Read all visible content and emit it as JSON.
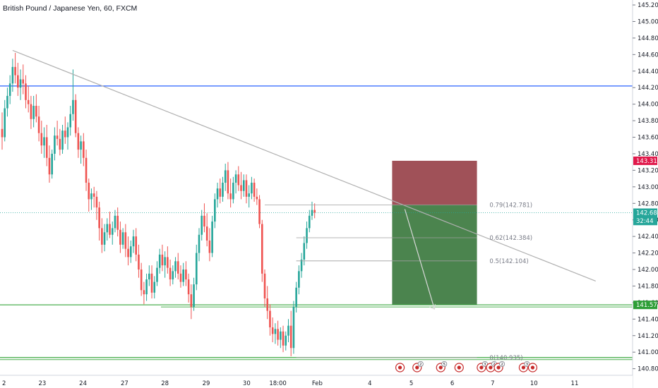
{
  "header": {
    "title": "British Pound / Japanese Yen, 60, FXCM"
  },
  "chart_data": {
    "type": "candlestick",
    "symbol": "British Pound / Japanese Yen",
    "interval": "60",
    "exchange": "FXCM",
    "ylim": [
      140.72,
      145.26
    ],
    "y_ticks": [
      140.8,
      141.0,
      141.2,
      141.4,
      141.6,
      141.8,
      142.0,
      142.2,
      142.4,
      142.6,
      142.8,
      143.0,
      143.2,
      143.4,
      143.6,
      143.8,
      144.0,
      144.2,
      144.4,
      144.6,
      144.8,
      145.0,
      145.2
    ],
    "y_tick_labels": [
      "140.800",
      "141.000",
      "141.200",
      "141.400",
      "141.600",
      "141.800",
      "142.000",
      "142.200",
      "142.400",
      "142.600",
      "142.800",
      "143.000",
      "143.200",
      "143.400",
      "143.600",
      "143.800",
      "144.000",
      "144.200",
      "144.400",
      "144.600",
      "144.800",
      "145.000",
      "145.200"
    ],
    "x_ticks": [
      {
        "label": "2",
        "bar": 0
      },
      {
        "label": "23",
        "bar": 15.3
      },
      {
        "label": "24",
        "bar": 30.8
      },
      {
        "label": "27",
        "bar": 46.6
      },
      {
        "label": "28",
        "bar": 62.0
      },
      {
        "label": "29",
        "bar": 77.7
      },
      {
        "label": "30",
        "bar": 93.1
      },
      {
        "label": "18:00",
        "bar": 105.0
      },
      {
        "label": "Feb",
        "bar": 120.0
      },
      {
        "label": "4",
        "bar": 140.0
      },
      {
        "label": "5",
        "bar": 155.8
      },
      {
        "label": "6",
        "bar": 171.4
      },
      {
        "label": "7",
        "bar": 186.8
      },
      {
        "label": "10",
        "bar": 202.5
      },
      {
        "label": "11",
        "bar": 218.0
      }
    ],
    "candles_ohlc": [
      [
        143.7,
        143.9,
        143.45,
        143.6
      ],
      [
        143.6,
        144.05,
        143.55,
        143.95
      ],
      [
        143.95,
        144.2,
        143.85,
        144.1
      ],
      [
        144.1,
        144.35,
        144.0,
        144.25
      ],
      [
        144.25,
        144.55,
        144.15,
        144.45
      ],
      [
        144.45,
        144.62,
        144.25,
        144.35
      ],
      [
        144.35,
        144.5,
        144.1,
        144.2
      ],
      [
        144.2,
        144.42,
        144.05,
        144.3
      ],
      [
        144.3,
        144.48,
        144.12,
        144.25
      ],
      [
        144.25,
        144.35,
        143.95,
        144.05
      ],
      [
        144.05,
        144.22,
        143.9,
        144.0
      ],
      [
        144.0,
        144.1,
        143.7,
        143.82
      ],
      [
        143.82,
        144.1,
        143.72,
        143.98
      ],
      [
        143.98,
        144.12,
        143.78,
        143.85
      ],
      [
        143.85,
        143.98,
        143.55,
        143.65
      ],
      [
        143.65,
        143.8,
        143.4,
        143.5
      ],
      [
        143.5,
        143.72,
        143.35,
        143.6
      ],
      [
        143.6,
        143.75,
        143.25,
        143.35
      ],
      [
        143.35,
        143.5,
        143.05,
        143.15
      ],
      [
        143.15,
        143.45,
        143.1,
        143.4
      ],
      [
        143.4,
        143.72,
        143.32,
        143.62
      ],
      [
        143.62,
        143.8,
        143.5,
        143.58
      ],
      [
        143.58,
        143.7,
        143.38,
        143.45
      ],
      [
        143.45,
        143.75,
        143.4,
        143.68
      ],
      [
        143.68,
        143.85,
        143.52,
        143.6
      ],
      [
        143.6,
        143.78,
        143.45,
        143.72
      ],
      [
        143.72,
        143.98,
        143.62,
        143.88
      ],
      [
        143.88,
        144.42,
        143.8,
        144.05
      ],
      [
        144.05,
        144.12,
        143.6,
        143.65
      ],
      [
        143.65,
        143.72,
        143.35,
        143.45
      ],
      [
        143.45,
        143.62,
        143.28,
        143.55
      ],
      [
        143.55,
        143.65,
        143.25,
        143.35
      ],
      [
        143.35,
        143.45,
        142.95,
        143.05
      ],
      [
        143.05,
        143.1,
        142.7,
        142.85
      ],
      [
        142.85,
        142.98,
        142.72,
        142.92
      ],
      [
        142.92,
        143.0,
        142.75,
        142.88
      ],
      [
        142.88,
        142.95,
        142.6,
        142.75
      ],
      [
        142.75,
        142.82,
        142.35,
        142.5
      ],
      [
        142.5,
        142.62,
        142.2,
        142.3
      ],
      [
        142.3,
        142.55,
        142.22,
        142.45
      ],
      [
        142.45,
        142.62,
        142.35,
        142.55
      ],
      [
        142.55,
        142.7,
        142.38,
        142.42
      ],
      [
        142.42,
        142.58,
        142.3,
        142.5
      ],
      [
        142.5,
        142.72,
        142.45,
        142.65
      ],
      [
        142.65,
        142.75,
        142.4,
        142.48
      ],
      [
        142.48,
        142.58,
        142.2,
        142.3
      ],
      [
        142.3,
        142.5,
        142.25,
        142.45
      ],
      [
        142.45,
        142.55,
        142.15,
        142.25
      ],
      [
        142.25,
        142.4,
        142.05,
        142.15
      ],
      [
        142.15,
        142.35,
        142.08,
        142.28
      ],
      [
        142.28,
        142.48,
        142.2,
        142.4
      ],
      [
        142.4,
        142.5,
        142.1,
        142.18
      ],
      [
        142.18,
        142.3,
        141.9,
        142.0
      ],
      [
        142.0,
        142.08,
        141.68,
        141.75
      ],
      [
        141.75,
        141.85,
        141.58,
        141.7
      ],
      [
        141.7,
        141.95,
        141.62,
        141.88
      ],
      [
        141.88,
        142.05,
        141.8,
        141.95
      ],
      [
        141.95,
        142.05,
        141.65,
        141.72
      ],
      [
        141.72,
        141.92,
        141.65,
        141.85
      ],
      [
        141.85,
        142.1,
        141.8,
        142.02
      ],
      [
        142.02,
        142.25,
        141.95,
        142.18
      ],
      [
        142.18,
        142.3,
        141.98,
        142.05
      ],
      [
        142.05,
        142.22,
        141.9,
        142.15
      ],
      [
        142.15,
        142.28,
        141.95,
        142.02
      ],
      [
        142.02,
        142.12,
        141.8,
        141.88
      ],
      [
        141.88,
        142.05,
        141.82,
        141.98
      ],
      [
        141.98,
        142.15,
        141.9,
        142.1
      ],
      [
        142.1,
        142.2,
        141.88,
        141.95
      ],
      [
        141.95,
        142.05,
        141.78,
        141.85
      ],
      [
        141.85,
        142.08,
        141.8,
        142.0
      ],
      [
        142.0,
        142.1,
        141.8,
        141.88
      ],
      [
        141.88,
        141.95,
        141.6,
        141.7
      ],
      [
        141.7,
        141.82,
        141.4,
        141.55
      ],
      [
        141.55,
        141.9,
        141.5,
        141.82
      ],
      [
        141.82,
        142.3,
        141.75,
        142.2
      ],
      [
        142.2,
        142.5,
        142.1,
        142.42
      ],
      [
        142.42,
        142.72,
        142.35,
        142.65
      ],
      [
        142.65,
        142.8,
        142.45,
        142.52
      ],
      [
        142.52,
        142.68,
        142.28,
        142.35
      ],
      [
        142.35,
        142.5,
        142.1,
        142.2
      ],
      [
        142.2,
        142.65,
        142.15,
        142.58
      ],
      [
        142.58,
        142.92,
        142.5,
        142.85
      ],
      [
        142.85,
        143.05,
        142.75,
        142.98
      ],
      [
        142.98,
        143.1,
        142.8,
        142.88
      ],
      [
        142.88,
        143.12,
        142.82,
        143.05
      ],
      [
        143.05,
        143.28,
        142.95,
        143.2
      ],
      [
        143.2,
        143.3,
        142.85,
        142.92
      ],
      [
        142.92,
        143.1,
        142.75,
        142.85
      ],
      [
        142.85,
        143.12,
        142.8,
        143.05
      ],
      [
        143.05,
        143.2,
        142.92,
        143.15
      ],
      [
        143.15,
        143.25,
        142.95,
        143.02
      ],
      [
        143.02,
        143.18,
        142.85,
        142.95
      ],
      [
        142.95,
        143.15,
        142.88,
        143.08
      ],
      [
        143.08,
        143.15,
        142.8,
        142.88
      ],
      [
        142.88,
        143.02,
        142.75,
        142.92
      ],
      [
        142.92,
        143.12,
        142.85,
        143.05
      ],
      [
        143.05,
        143.1,
        142.82,
        142.88
      ],
      [
        142.88,
        142.98,
        142.78,
        142.85
      ],
      [
        142.85,
        142.9,
        142.5,
        142.55
      ],
      [
        142.55,
        142.6,
        141.85,
        141.95
      ],
      [
        141.95,
        142.0,
        141.55,
        141.65
      ],
      [
        141.65,
        141.8,
        141.4,
        141.5
      ],
      [
        141.5,
        141.58,
        141.2,
        141.3
      ],
      [
        141.3,
        141.42,
        141.12,
        141.22
      ],
      [
        141.22,
        141.35,
        141.1,
        141.28
      ],
      [
        141.28,
        141.38,
        141.08,
        141.15
      ],
      [
        141.15,
        141.3,
        141.05,
        141.25
      ],
      [
        141.25,
        141.32,
        141.0,
        141.08
      ],
      [
        141.08,
        141.25,
        141.02,
        141.2
      ],
      [
        141.2,
        141.4,
        141.12,
        141.32
      ],
      [
        141.32,
        141.5,
        140.95,
        141.05
      ],
      [
        141.05,
        141.62,
        140.98,
        141.55
      ],
      [
        141.55,
        141.85,
        141.48,
        141.78
      ],
      [
        141.78,
        142.05,
        141.7,
        141.98
      ],
      [
        141.98,
        142.2,
        141.9,
        142.12
      ],
      [
        142.12,
        142.4,
        142.05,
        142.32
      ],
      [
        142.32,
        142.58,
        142.25,
        142.5
      ],
      [
        142.5,
        142.72,
        142.45,
        142.65
      ],
      [
        142.65,
        142.82,
        142.6,
        142.72
      ],
      [
        142.72,
        142.8,
        142.62,
        142.69
      ]
    ],
    "horizontal_levels": [
      {
        "price": 144.22,
        "label": "144.220",
        "color": "#2962ff"
      },
      {
        "price": 141.572,
        "label": "141.572",
        "color": "#4caf50"
      },
      {
        "price": 140.935,
        "color": "#4caf50"
      }
    ],
    "trendline": {
      "from": {
        "bar": 4,
        "price": 144.65
      },
      "to": {
        "bar": 226,
        "price": 141.86
      },
      "color": "#b0b0b0"
    },
    "fibonacci": [
      {
        "label": "0.79(142.781)",
        "price": 142.781
      },
      {
        "label": "0.62(142.384)",
        "price": 142.384
      },
      {
        "label": "0.5(142.104)",
        "price": 142.104
      },
      {
        "label": "0(140.935)",
        "price": 140.935
      }
    ],
    "short_position": {
      "entry": 142.781,
      "stop": 143.315,
      "target": 141.572,
      "bar_start": 148.5,
      "bar_end": 180.8
    },
    "price_tags": [
      {
        "label": "143.315",
        "price": 143.315,
        "color": "#e0194b"
      },
      {
        "label": "142.687",
        "price": 142.687,
        "color": "#26a69a"
      },
      {
        "label": "32:44",
        "price": 142.587,
        "color": "#26a69a"
      },
      {
        "label": "141.572",
        "price": 141.572,
        "color": "#2e9e37"
      }
    ],
    "current_price": 142.687,
    "colors": {
      "up": "#26a69a",
      "down": "#ef5350",
      "axis": "#d1d4dc",
      "text": "#131722",
      "risk_zone": "#8b2b33",
      "reward_zone": "#2c6e2f"
    },
    "grid": false,
    "event_markers": [
      {
        "bar": 151.5,
        "count": ""
      },
      {
        "bar": 158.0,
        "count": "2"
      },
      {
        "bar": 167.0,
        "count": "5"
      },
      {
        "bar": 174.0,
        "count": ""
      },
      {
        "bar": 182.5,
        "count": "3"
      },
      {
        "bar": 186.0,
        "count": "2"
      },
      {
        "bar": 189.0,
        "count": "2"
      },
      {
        "bar": 198.5,
        "count": "3"
      },
      {
        "bar": 202.0,
        "count": ""
      }
    ]
  }
}
